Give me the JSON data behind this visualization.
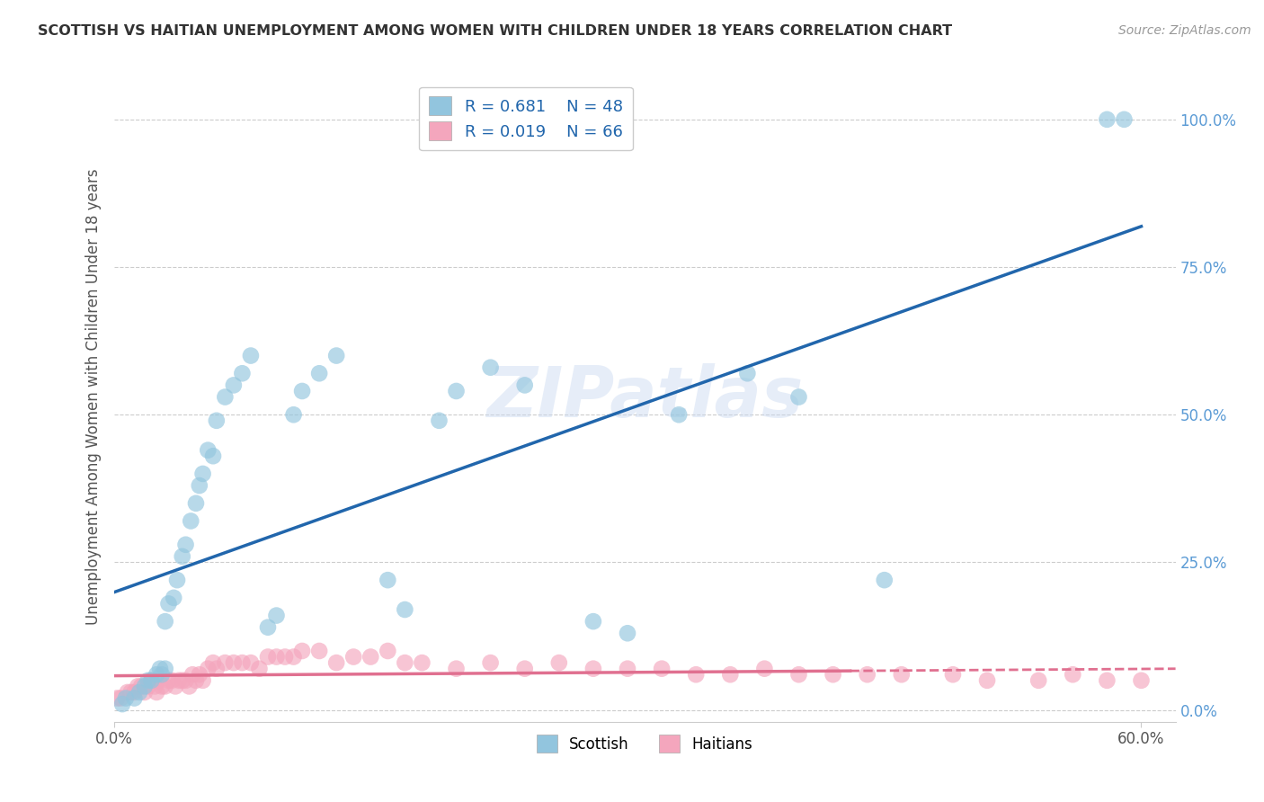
{
  "title": "SCOTTISH VS HAITIAN UNEMPLOYMENT AMONG WOMEN WITH CHILDREN UNDER 18 YEARS CORRELATION CHART",
  "source_text": "Source: ZipAtlas.com",
  "ylabel": "Unemployment Among Women with Children Under 18 years",
  "watermark": "ZIPatlas",
  "xlim": [
    0.0,
    0.62
  ],
  "ylim": [
    -0.02,
    1.08
  ],
  "x_ticks": [
    0.0,
    0.6
  ],
  "x_tick_labels": [
    "0.0%",
    "60.0%"
  ],
  "y_ticks": [
    0.0,
    0.25,
    0.5,
    0.75,
    1.0
  ],
  "y_tick_labels": [
    "0.0%",
    "25.0%",
    "50.0%",
    "75.0%",
    "100.0%"
  ],
  "scottish_color": "#92c5de",
  "haitian_color": "#f4a6bd",
  "scottish_line_color": "#2166ac",
  "haitian_line_color": "#e07090",
  "scottish_R": 0.681,
  "scottish_N": 48,
  "haitian_R": 0.019,
  "haitian_N": 66,
  "legend_label_scottish": "Scottish",
  "legend_label_haitian": "Haitians",
  "background_color": "#ffffff",
  "grid_color": "#cccccc",
  "scottish_x": [
    0.005,
    0.007,
    0.012,
    0.015,
    0.018,
    0.02,
    0.022,
    0.025,
    0.027,
    0.028,
    0.03,
    0.03,
    0.032,
    0.035,
    0.037,
    0.04,
    0.042,
    0.045,
    0.048,
    0.05,
    0.052,
    0.055,
    0.058,
    0.06,
    0.065,
    0.07,
    0.075,
    0.08,
    0.09,
    0.095,
    0.105,
    0.11,
    0.12,
    0.13,
    0.16,
    0.17,
    0.19,
    0.2,
    0.22,
    0.24,
    0.28,
    0.3,
    0.33,
    0.37,
    0.4,
    0.45,
    0.58,
    0.59
  ],
  "scottish_y": [
    0.01,
    0.02,
    0.02,
    0.03,
    0.04,
    0.05,
    0.05,
    0.06,
    0.07,
    0.06,
    0.07,
    0.15,
    0.18,
    0.19,
    0.22,
    0.26,
    0.28,
    0.32,
    0.35,
    0.38,
    0.4,
    0.44,
    0.43,
    0.49,
    0.53,
    0.55,
    0.57,
    0.6,
    0.14,
    0.16,
    0.5,
    0.54,
    0.57,
    0.6,
    0.22,
    0.17,
    0.49,
    0.54,
    0.58,
    0.55,
    0.15,
    0.13,
    0.5,
    0.57,
    0.53,
    0.22,
    1.0,
    1.0
  ],
  "haitian_x": [
    0.002,
    0.004,
    0.008,
    0.01,
    0.012,
    0.014,
    0.016,
    0.018,
    0.02,
    0.022,
    0.024,
    0.025,
    0.026,
    0.028,
    0.03,
    0.032,
    0.034,
    0.036,
    0.038,
    0.04,
    0.042,
    0.044,
    0.046,
    0.048,
    0.05,
    0.052,
    0.055,
    0.058,
    0.06,
    0.065,
    0.07,
    0.075,
    0.08,
    0.085,
    0.09,
    0.095,
    0.1,
    0.105,
    0.11,
    0.12,
    0.13,
    0.14,
    0.15,
    0.16,
    0.17,
    0.18,
    0.2,
    0.22,
    0.24,
    0.26,
    0.28,
    0.3,
    0.32,
    0.34,
    0.36,
    0.38,
    0.4,
    0.42,
    0.44,
    0.46,
    0.49,
    0.51,
    0.54,
    0.56,
    0.58,
    0.6
  ],
  "haitian_y": [
    0.02,
    0.02,
    0.03,
    0.03,
    0.03,
    0.04,
    0.04,
    0.03,
    0.04,
    0.05,
    0.04,
    0.03,
    0.05,
    0.04,
    0.04,
    0.05,
    0.05,
    0.04,
    0.05,
    0.05,
    0.05,
    0.04,
    0.06,
    0.05,
    0.06,
    0.05,
    0.07,
    0.08,
    0.07,
    0.08,
    0.08,
    0.08,
    0.08,
    0.07,
    0.09,
    0.09,
    0.09,
    0.09,
    0.1,
    0.1,
    0.08,
    0.09,
    0.09,
    0.1,
    0.08,
    0.08,
    0.07,
    0.08,
    0.07,
    0.08,
    0.07,
    0.07,
    0.07,
    0.06,
    0.06,
    0.07,
    0.06,
    0.06,
    0.06,
    0.06,
    0.06,
    0.05,
    0.05,
    0.06,
    0.05,
    0.05
  ]
}
